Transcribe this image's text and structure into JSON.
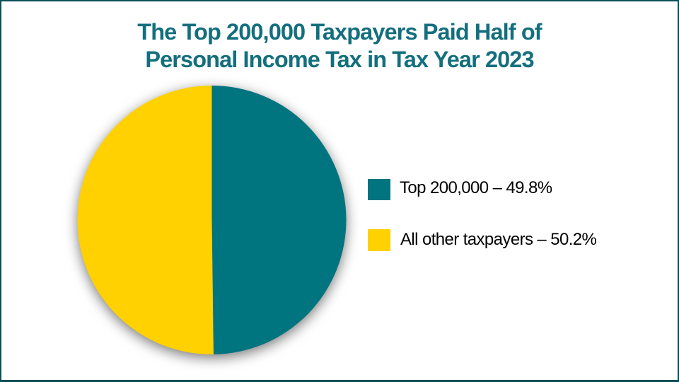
{
  "frame": {
    "border_color": "#0a4e59"
  },
  "title": {
    "line1": "The Top 200,000 Taxpayers Paid Half of",
    "line2": "Personal Income Tax in Tax Year 2023",
    "color": "#136f7d"
  },
  "chart_data": {
    "type": "pie",
    "title": "The Top 200,000 Taxpayers Paid Half of Personal Income Tax in Tax Year 2023",
    "series": [
      {
        "name": "Top 200,000",
        "value": 49.8,
        "color": "#00747f"
      },
      {
        "name": "All other taxpayers",
        "value": 50.2,
        "color": "#ffd100"
      }
    ],
    "start_angle_deg": 0,
    "direction": "clockwise",
    "legend_position": "right"
  },
  "legend": {
    "items": [
      {
        "label": "Top 200,000 – 49.8%",
        "color": "#00747f"
      },
      {
        "label": "All other taxpayers – 50.2%",
        "color": "#ffd100"
      }
    ],
    "text_color": "#000000"
  }
}
